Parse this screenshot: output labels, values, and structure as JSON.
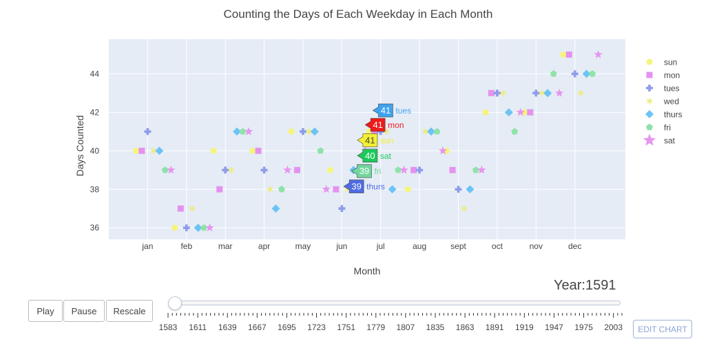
{
  "chart_data": {
    "type": "scatter",
    "title": "Counting the Days of Each Weekday in Each Month",
    "xlabel": "Month",
    "ylabel": "Days Counted",
    "categories": [
      "jan",
      "feb",
      "mar",
      "apr",
      "may",
      "jun",
      "jul",
      "aug",
      "sept",
      "oct",
      "nov",
      "dec"
    ],
    "y_ticks": [
      36,
      38,
      40,
      42,
      44
    ],
    "ylim": [
      35.4,
      45.8
    ],
    "legend_position": "right",
    "series": [
      {
        "name": "sun",
        "color": "#f6f57a",
        "symbol": "circle",
        "x": [
          -0.3,
          0.7,
          1.7,
          2.7,
          3.7,
          4.7,
          5.7,
          6.7,
          7.7,
          8.7,
          9.7,
          10.7
        ],
        "values": [
          40,
          36,
          40,
          40,
          41,
          39,
          41,
          38,
          40,
          42,
          42,
          45
        ]
      },
      {
        "name": "mon",
        "color": "#e592ef",
        "symbol": "square",
        "x": [
          -0.15,
          0.85,
          1.85,
          2.85,
          3.85,
          4.85,
          5.85,
          6.85,
          7.85,
          8.85,
          9.85,
          10.85
        ],
        "values": [
          40,
          37,
          38,
          40,
          39,
          38,
          41,
          39,
          39,
          43,
          42,
          45
        ]
      },
      {
        "name": "tues",
        "color": "#8e9ce9",
        "symbol": "cross",
        "x": [
          0.0,
          1.0,
          2.0,
          3.0,
          4.0,
          5.0,
          6.0,
          7.0,
          8.0,
          9.0,
          10.0,
          11.0
        ],
        "values": [
          41,
          36,
          39,
          39,
          41,
          37,
          41,
          39,
          38,
          43,
          43,
          44
        ]
      },
      {
        "name": "wed",
        "color": "#ecec83",
        "symbol": "star-triangle",
        "x": [
          0.15,
          1.15,
          2.15,
          3.15,
          4.15,
          5.15,
          6.15,
          7.15,
          8.15,
          9.15,
          10.15,
          11.15
        ],
        "values": [
          40,
          37,
          39,
          38,
          41,
          38,
          41,
          41,
          37,
          43,
          43,
          43
        ]
      },
      {
        "name": "thurs",
        "color": "#6ec3f5",
        "symbol": "diamond",
        "x": [
          0.3,
          1.3,
          2.3,
          3.3,
          4.3,
          5.3,
          6.3,
          7.3,
          8.3,
          9.3,
          10.3,
          11.3
        ],
        "values": [
          40,
          36,
          41,
          37,
          41,
          39,
          38,
          41,
          38,
          42,
          43,
          44
        ]
      },
      {
        "name": "fri",
        "color": "#8fe2a8",
        "symbol": "pentagon",
        "x": [
          0.45,
          1.45,
          2.45,
          3.45,
          4.45,
          5.45,
          6.45,
          7.45,
          8.45,
          9.45,
          10.45,
          11.45
        ],
        "values": [
          39,
          36,
          41,
          38,
          40,
          38,
          39,
          41,
          39,
          41,
          44,
          44
        ]
      },
      {
        "name": "sat",
        "color": "#e696ee",
        "symbol": "star",
        "x": [
          0.6,
          1.6,
          2.6,
          3.6,
          4.6,
          5.6,
          6.6,
          7.6,
          8.6,
          9.6,
          10.6,
          11.6
        ],
        "values": [
          39,
          36,
          41,
          39,
          38,
          40,
          39,
          40,
          39,
          42,
          43,
          45
        ]
      }
    ],
    "hover_labels": [
      {
        "text": "41",
        "name": "tues",
        "color": "#3fa2ef",
        "x": 5.8,
        "y": 42.1
      },
      {
        "text": "41",
        "name": "mon",
        "color": "#ee1b1b",
        "x": 5.6,
        "y": 41.35
      },
      {
        "text": "41",
        "name": "sun",
        "color": "#f4f031",
        "x": 5.4,
        "y": 40.55
      },
      {
        "text": "40",
        "name": "sat",
        "color": "#1ec95c",
        "x": 5.4,
        "y": 39.75
      },
      {
        "text": "39",
        "name": "fri",
        "color": "#72d69d",
        "x": 5.25,
        "y": 38.95
      },
      {
        "text": "39",
        "name": "thurs",
        "color": "#4f6be3",
        "x": 5.05,
        "y": 38.15
      }
    ]
  },
  "slider": {
    "year_prefix": "Year:",
    "current": "1591",
    "tick_labels": [
      "1583",
      "1611",
      "1639",
      "1667",
      "1695",
      "1723",
      "1751",
      "1779",
      "1807",
      "1835",
      "1863",
      "1891",
      "1919",
      "1947",
      "1975",
      "2003"
    ],
    "value_fraction": 0.0
  },
  "buttons": {
    "play": "Play",
    "pause": "Pause",
    "rescale": "Rescale"
  },
  "edit_chart_label": "EDIT CHART"
}
